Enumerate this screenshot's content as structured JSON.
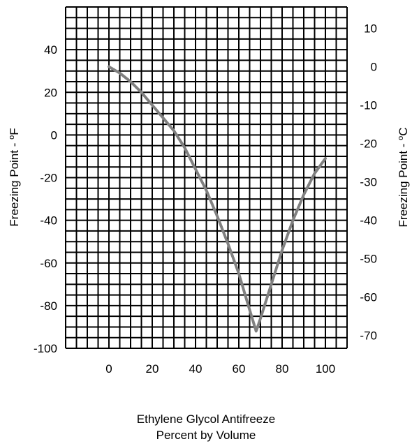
{
  "chart_data": {
    "type": "line",
    "xlabel_lines": [
      "Ethylene Glycol Antifreeze",
      "Percent by Volume"
    ],
    "ylabel_left": {
      "text": "Freezing Point - ",
      "sup": "o",
      "unit": "F"
    },
    "ylabel_right": {
      "text": "Freezing Point - ",
      "sup": "o",
      "unit": "C"
    },
    "xlim": [
      -20,
      110
    ],
    "ylim": [
      -100,
      60
    ],
    "x_ticks": [
      0,
      20,
      40,
      60,
      80,
      100
    ],
    "y_ticks_left": [
      -100,
      -80,
      -60,
      -40,
      -20,
      0,
      20,
      40
    ],
    "y_ticks_right": [
      10,
      0,
      -10,
      -20,
      -30,
      -40,
      -50,
      -60,
      -70
    ],
    "grid": true,
    "series": [
      {
        "x": [
          0,
          5,
          10,
          15,
          20,
          25,
          30,
          35,
          40,
          45,
          50,
          55,
          60,
          65,
          68,
          70,
          75,
          80,
          85,
          90,
          95,
          100
        ],
        "y": [
          32,
          29,
          25,
          20,
          14,
          8,
          2,
          -6,
          -16,
          -26,
          -38,
          -51,
          -65,
          -82,
          -92,
          -86,
          -70,
          -54,
          -40,
          -28,
          -18,
          -11
        ]
      }
    ],
    "line_color": "#808080",
    "grid_color": "#000000"
  }
}
